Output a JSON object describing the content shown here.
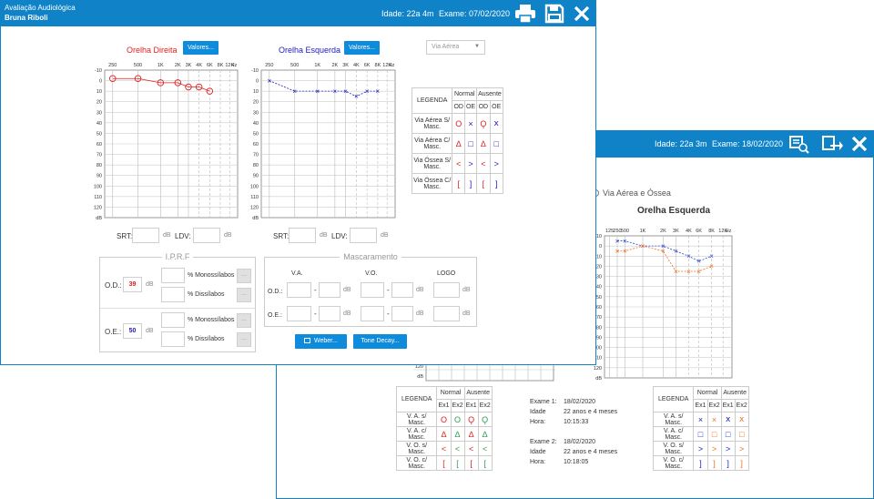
{
  "back": {
    "age": "Idade: 22a 3m",
    "exam": "Exame: 18/02/2020",
    "radio_label": "Via Aérea e Óssea",
    "chart_title": "Orelha Esquerda",
    "freq_labels": [
      "125",
      "250",
      "500",
      "1K",
      "2K",
      "3K",
      "4K",
      "6K",
      "8K",
      "12K",
      "Hz"
    ],
    "y_labels": [
      "10",
      "0",
      "10",
      "20",
      "30",
      "40",
      "50",
      "60",
      "70",
      "80",
      "90",
      "100",
      "110",
      "120",
      "dB"
    ],
    "legend": {
      "title": "LEGENDA",
      "normal": "Normal",
      "absent": "Ausente",
      "cols": [
        "Ex1",
        "Ex2",
        "Ex1",
        "Ex2"
      ],
      "rows": [
        "V. A. s/ Masc.",
        "V. A. c/ Masc.",
        "V. O. s/ Masc.",
        "V. O. c/ Masc."
      ]
    },
    "exam1": {
      "label": "Exame 1:",
      "date": "18/02/2020",
      "age_label": "Idade",
      "age": "22 anos e 4 meses",
      "hour_label": "Hora:",
      "hour": "10:15:33"
    },
    "exam2": {
      "label": "Exame 2:",
      "date": "18/02/2020",
      "age_label": "Idade",
      "age": "22 anos e 4 meses",
      "hour_label": "Hora:",
      "hour": "10:18:05"
    }
  },
  "front": {
    "title": "Avaliação Audiológica",
    "patient": "Bruna Riboli",
    "age": "Idade: 22a 4m",
    "exam": "Exame: 07/02/2020",
    "right_ear": {
      "title": "Orelha Direita",
      "button": "Valores...",
      "color": "#e02020"
    },
    "left_ear": {
      "title": "Orelha Esquerda",
      "button": "Valores...",
      "color": "#2020c0"
    },
    "via_select": "Via Aérea",
    "freq_labels": [
      "250",
      "500",
      "1K",
      "2K",
      "3K",
      "4K",
      "6K",
      "8K",
      "12K",
      "Hz"
    ],
    "y_labels": [
      "-10",
      "0",
      "10",
      "20",
      "30",
      "40",
      "50",
      "60",
      "70",
      "80",
      "90",
      "100",
      "110",
      "120",
      "dB"
    ],
    "legend": {
      "title": "LEGENDA",
      "normal": "Normal",
      "absent": "Ausente",
      "cols": [
        "OD",
        "OE",
        "OD",
        "OE"
      ],
      "rows": [
        "Via Aérea S/ Masc.",
        "Via Aérea C/ Masc.",
        "Via Óssea S/ Masc.",
        "Via Óssea C/ Masc."
      ]
    },
    "srt_label": "SRT:",
    "ldv_label": "LDV:",
    "db": "dB",
    "iprf": {
      "title": "I.P.R.F",
      "od_label": "O.D.:",
      "od_value": "39",
      "oe_label": "O.E.:",
      "oe_value": "50",
      "mono": "% Monossílabos",
      "dis": "% Dissílabos",
      "dots": "..."
    },
    "masc": {
      "title": "Mascaramento",
      "va": "V.A.",
      "vo": "V.O.",
      "logo": "LOGO",
      "od": "O.D.:",
      "oe": "O.E.:",
      "dash": "-"
    },
    "weber": "Weber...",
    "tone": "Tone Decay..."
  },
  "chart_data": [
    {
      "type": "line",
      "title": "Orelha Direita",
      "x": [
        "250",
        "500",
        "1K",
        "2K",
        "3K",
        "4K",
        "6K"
      ],
      "series": [
        {
          "values": [
            -2,
            -2,
            2,
            2,
            6,
            6,
            10
          ]
        }
      ],
      "ylim": [
        -10,
        120
      ]
    },
    {
      "type": "line",
      "title": "Orelha Esquerda",
      "x": [
        "250",
        "500",
        "1K",
        "2K",
        "3K",
        "4K",
        "6K",
        "8K"
      ],
      "series": [
        {
          "values": [
            0,
            10,
            10,
            10,
            10,
            15,
            10,
            10
          ]
        }
      ],
      "ylim": [
        -10,
        120
      ]
    },
    {
      "type": "line",
      "title": "Orelha Esquerda",
      "x": [
        "250",
        "500",
        "1K",
        "2K",
        "3K",
        "4K",
        "6K",
        "8K"
      ],
      "series": [
        {
          "values": [
            -5,
            -5,
            0,
            0,
            5,
            10,
            15,
            10
          ]
        },
        {
          "values": [
            5,
            5,
            0,
            5,
            25,
            25,
            25,
            20
          ]
        }
      ],
      "ylim": [
        -10,
        120
      ]
    }
  ]
}
